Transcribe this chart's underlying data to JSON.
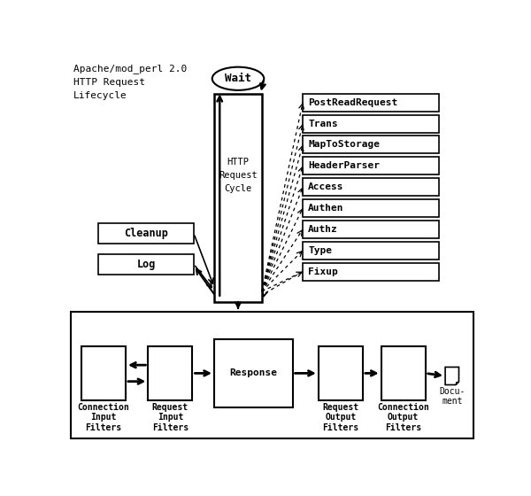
{
  "title_text": "Apache/mod_perl 2.0\nHTTP Request\nLifecycle",
  "cycle_label": "HTTP\nRequest\nCycle",
  "wait_label": "Wait",
  "phase_boxes": [
    "PostReadRequest",
    "Trans",
    "MapToStorage",
    "HeaderParser",
    "Access",
    "Authen",
    "Authz",
    "Type",
    "Fixup"
  ],
  "left_boxes": [
    "Cleanup",
    "Log"
  ],
  "bg_color": "#ffffff",
  "box_edge_color": "#000000",
  "text_color": "#000000",
  "font_family": "monospace"
}
